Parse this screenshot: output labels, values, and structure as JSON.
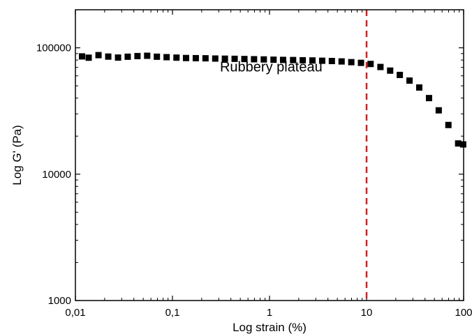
{
  "chart_data": {
    "type": "scatter",
    "xlabel": "Log strain (%)",
    "ylabel": "Log G' (Pa)",
    "x_scale": "log",
    "y_scale": "log",
    "xlim": [
      0.01,
      100
    ],
    "ylim": [
      1000,
      200000
    ],
    "x_ticks": [
      {
        "value": 0.01,
        "label": "0,01"
      },
      {
        "value": 0.1,
        "label": "0,1"
      },
      {
        "value": 1,
        "label": "1"
      },
      {
        "value": 10,
        "label": "10"
      },
      {
        "value": 100,
        "label": "100"
      }
    ],
    "y_ticks": [
      {
        "value": 1000,
        "label": "1000"
      },
      {
        "value": 10000,
        "label": "10000"
      },
      {
        "value": 100000,
        "label": "100000"
      }
    ],
    "grid": false,
    "marker": "square",
    "marker_color": "#000000",
    "series": [
      {
        "x": [
          0.0117,
          0.0137,
          0.0173,
          0.0218,
          0.0275,
          0.0346,
          0.0436,
          0.0549,
          0.0691,
          0.087,
          0.11,
          0.138,
          0.174,
          0.219,
          0.276,
          0.347,
          0.437,
          0.551,
          0.693,
          0.873,
          1.1,
          1.38,
          1.75,
          2.2,
          2.77,
          3.49,
          4.39,
          5.53,
          6.96,
          8.76,
          11.0,
          13.9,
          17.5,
          22.0,
          27.7,
          34.9,
          44.0,
          55.4,
          69.7,
          87.8,
          99.0
        ],
        "y": [
          85500,
          83500,
          87500,
          85200,
          83700,
          85000,
          86000,
          86500,
          85000,
          84300,
          83600,
          83000,
          82800,
          82600,
          82200,
          82000,
          81800,
          81500,
          81200,
          80900,
          80500,
          80200,
          80000,
          79700,
          79400,
          79000,
          78600,
          78000,
          77000,
          76000,
          74500,
          70500,
          66000,
          61000,
          55000,
          48500,
          40000,
          32000,
          24500,
          17500,
          17200
        ]
      }
    ],
    "reference_line": {
      "x": 10,
      "color": "#cc2222",
      "style": "dashed"
    },
    "annotations": [
      {
        "text": "Rubbery plateau",
        "x": 1.04,
        "y": 65000
      }
    ]
  }
}
